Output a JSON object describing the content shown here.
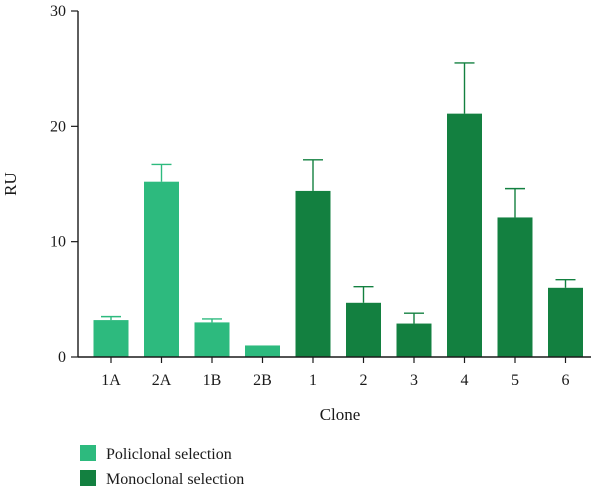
{
  "chart_data": {
    "type": "bar",
    "categories": [
      "1A",
      "2A",
      "1B",
      "2B",
      "1",
      "2",
      "3",
      "4",
      "5",
      "6"
    ],
    "values": [
      3.2,
      15.2,
      3.0,
      1.0,
      14.4,
      4.7,
      2.9,
      21.1,
      12.1,
      6.0
    ],
    "errors": [
      0.3,
      1.5,
      0.3,
      0.0,
      2.7,
      1.4,
      0.9,
      4.4,
      2.5,
      0.7
    ],
    "groups": [
      0,
      0,
      0,
      0,
      1,
      1,
      1,
      1,
      1,
      1
    ],
    "legend": [
      {
        "name": "Policlonal selection",
        "color": "#2dba7e"
      },
      {
        "name": "Monoclonal selection",
        "color": "#138040"
      }
    ],
    "xlabel": "Clone",
    "ylabel": "RU",
    "ylim": [
      0,
      30
    ],
    "yticks": [
      0,
      10,
      20,
      30
    ],
    "grid": false,
    "legend_position": "bottom-left"
  }
}
